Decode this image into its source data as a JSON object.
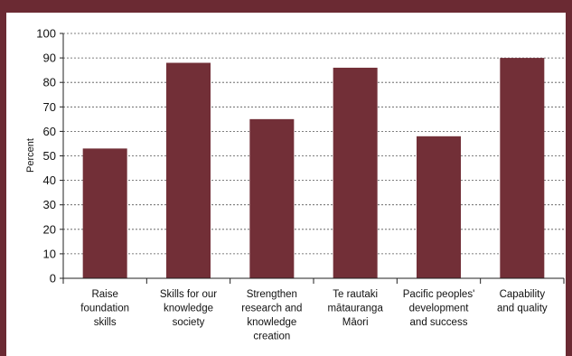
{
  "chart_data": {
    "type": "bar",
    "categories": [
      [
        "Raise",
        "foundation",
        "skills"
      ],
      [
        "Skills for our",
        "knowledge",
        "society"
      ],
      [
        "Strengthen",
        "research and",
        "knowledge",
        "creation"
      ],
      [
        "Te rautaki",
        "mātauranga",
        "Māori"
      ],
      [
        "Pacific peoples'",
        "development",
        "and success"
      ],
      [
        "Capability",
        "and quality"
      ]
    ],
    "values": [
      53,
      88,
      65,
      86,
      58,
      90
    ],
    "title": "",
    "xlabel": "",
    "ylabel": "Percent",
    "ylim": [
      0,
      100
    ],
    "yticks": [
      0,
      10,
      20,
      30,
      40,
      50,
      60,
      70,
      80,
      90,
      100
    ],
    "grid": true,
    "legend": "none",
    "colors": {
      "bar": "#722f37",
      "frame": "#6b2a33",
      "grid": "#555555",
      "axis": "#222222"
    }
  }
}
